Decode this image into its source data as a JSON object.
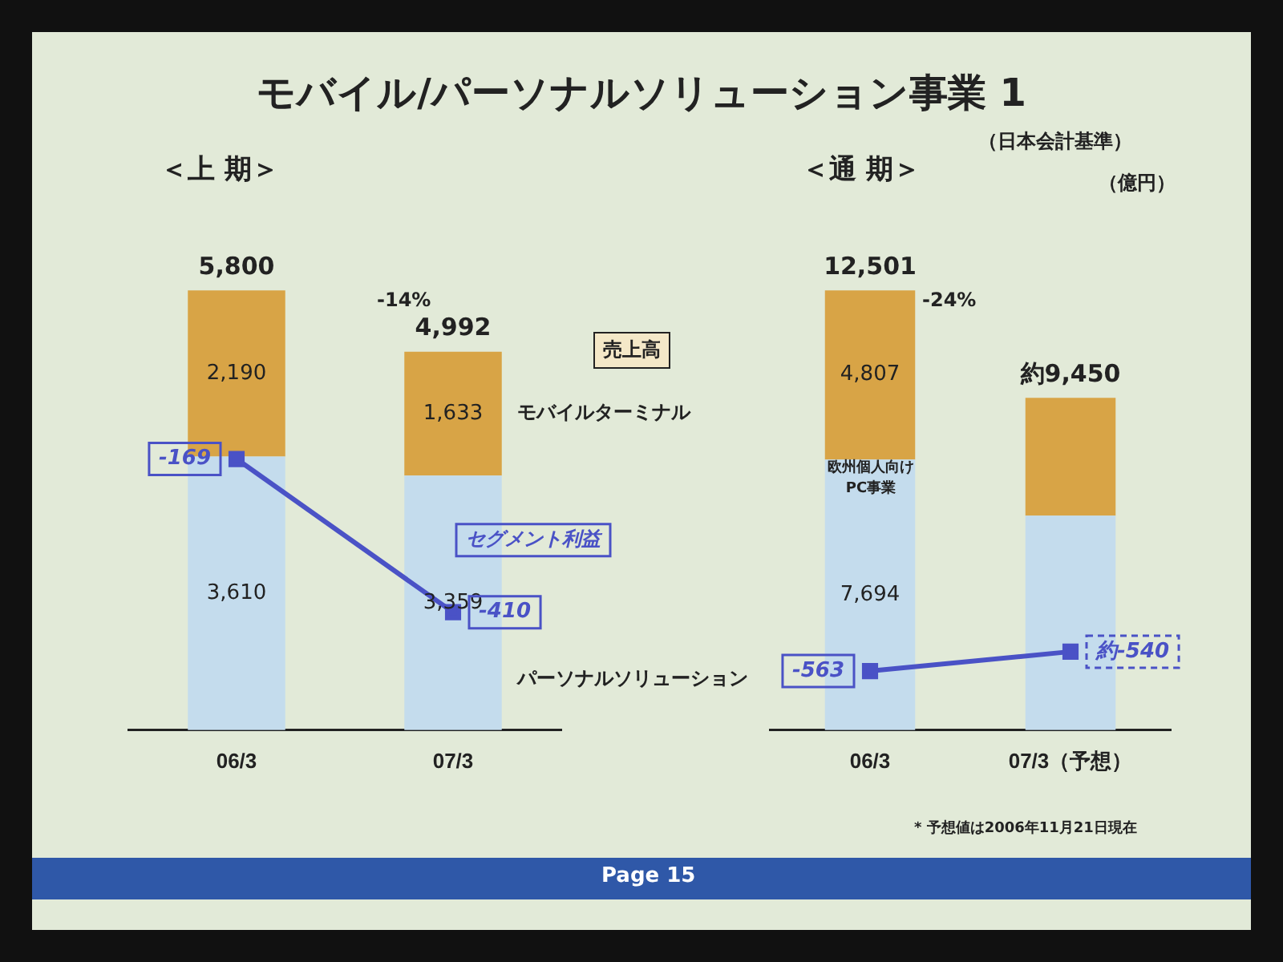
{
  "chart_data": [
    {
      "type": "bar",
      "title": "モバイル/パーソナルソリューション事業 1",
      "subtitle": "＜上 期＞",
      "categories": [
        "06/3",
        "07/3"
      ],
      "stacked": true,
      "legend": false,
      "grid": false,
      "tick_labels": "x",
      "marker": "square",
      "series": [
        {
          "name": "パーソナルソリューション",
          "color": "#c4dced",
          "values": [
            3610,
            3359
          ],
          "value_labels": [
            "3,610",
            "3,359"
          ]
        },
        {
          "name": "モバイルターミナル",
          "color": "#d8a446",
          "values": [
            2190,
            1633
          ],
          "value_labels": [
            "2,190",
            "1,633"
          ]
        },
        {
          "name": "セグメント利益",
          "type": "line",
          "axis": "y2",
          "color": "#4a52c6",
          "values": [
            -169,
            -410
          ],
          "value_labels": [
            "-169",
            "-410"
          ]
        }
      ],
      "totals": [
        "5,800",
        "4,992"
      ],
      "annotations": [
        "-14%",
        "売上高"
      ]
    },
    {
      "type": "bar",
      "subtitle": "＜通 期＞",
      "categories": [
        "06/3",
        "07/3（予想）"
      ],
      "stacked": true,
      "legend": false,
      "grid": false,
      "tick_labels": "x",
      "marker": "square",
      "series": [
        {
          "color": "#c4dced",
          "values": [
            7694,
            6100
          ],
          "value_labels": [
            "7,694",
            null
          ]
        },
        {
          "color": "#d8a446",
          "values": [
            4807,
            3350
          ],
          "value_labels": [
            "4,807",
            null
          ]
        },
        {
          "type": "line",
          "axis": "y2",
          "color": "#4a52c6",
          "values": [
            -563,
            -540
          ],
          "value_labels": [
            "-563",
            "約-540"
          ]
        }
      ],
      "totals": [
        "12,501",
        "約9,450"
      ],
      "annotations": [
        "（日本会計基準）",
        "（億円）",
        "-24%",
        "欧州個人向けPC事業",
        "* 予想値は2006年11月21日現在",
        "Page 15"
      ]
    }
  ]
}
